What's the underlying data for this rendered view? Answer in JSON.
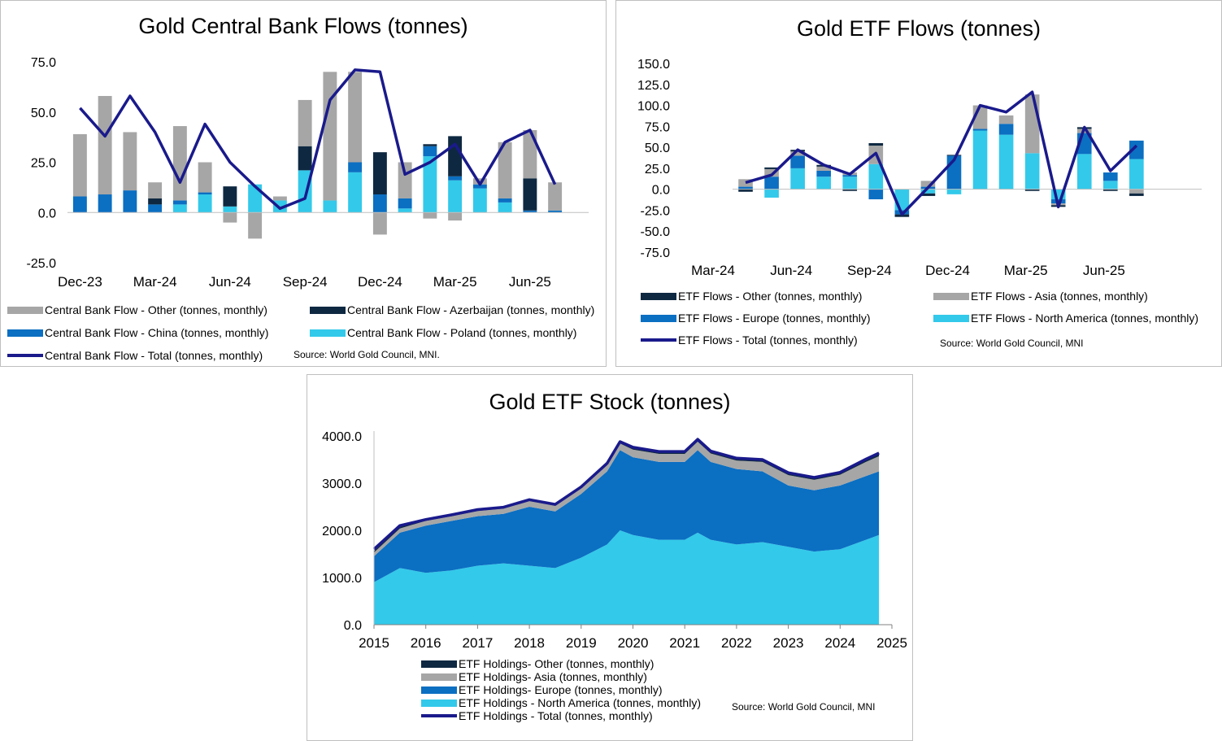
{
  "colors": {
    "other": "#a6a6a6",
    "azerbaijan": "#0e2841",
    "china": "#0b6fc2",
    "poland": "#33c9ea",
    "total": "#1a1a8c",
    "etf_other": "#0e2841",
    "etf_asia": "#a6a6a6",
    "etf_europe": "#0b6fc2",
    "etf_na": "#33c9ea"
  },
  "panel1": {
    "title": "Gold Central Bank Flows (tonnes)",
    "source": "Source: World Gold Council, MNI.",
    "legend": [
      {
        "label": "Central Bank Flow - Other (tonnes, monthly)",
        "kind": "bar",
        "color": "#a6a6a6"
      },
      {
        "label": "Central Bank Flow - Azerbaijan (tonnes, monthly)",
        "kind": "bar",
        "color": "#0e2841"
      },
      {
        "label": "Central Bank Flow - China (tonnes, monthly)",
        "kind": "bar",
        "color": "#0b6fc2"
      },
      {
        "label": "Central Bank Flow - Poland (tonnes, monthly)",
        "kind": "bar",
        "color": "#33c9ea"
      },
      {
        "label": "Central Bank Flow - Total (tonnes, monthly)",
        "kind": "line",
        "color": "#1a1a8c"
      }
    ]
  },
  "panel2": {
    "title": "Gold ETF Flows (tonnes)",
    "source": "Source: World Gold Council, MNI",
    "legend": [
      {
        "label": "ETF Flows - Other (tonnes, monthly)",
        "kind": "bar",
        "color": "#0e2841"
      },
      {
        "label": "ETF Flows - Asia (tonnes, monthly)",
        "kind": "bar",
        "color": "#a6a6a6"
      },
      {
        "label": "ETF Flows - Europe (tonnes, monthly)",
        "kind": "bar",
        "color": "#0b6fc2"
      },
      {
        "label": "ETF Flows - North America (tonnes, monthly)",
        "kind": "bar",
        "color": "#33c9ea"
      },
      {
        "label": "ETF Flows - Total (tonnes, monthly)",
        "kind": "line",
        "color": "#1a1a8c"
      }
    ]
  },
  "panel3": {
    "title": "Gold ETF Stock (tonnes)",
    "source": "Source: World Gold Council, MNI",
    "legend": [
      {
        "label": "ETF Holdings- Other (tonnes, monthly)",
        "kind": "bar",
        "color": "#0e2841"
      },
      {
        "label": "ETF Holdings- Asia (tonnes, monthly)",
        "kind": "bar",
        "color": "#a6a6a6"
      },
      {
        "label": "ETF Holdings- Europe (tonnes, monthly)",
        "kind": "bar",
        "color": "#0b6fc2"
      },
      {
        "label": "ETF Holdings - North America (tonnes, monthly)",
        "kind": "bar",
        "color": "#33c9ea"
      },
      {
        "label": "ETF Holdings - Total (tonnes, monthly)",
        "kind": "line",
        "color": "#1a1a8c"
      }
    ]
  },
  "chart_data": [
    {
      "type": "bar",
      "stacked": true,
      "title": "Gold Central Bank Flows (tonnes)",
      "ylim": [
        -25,
        75
      ],
      "yticks": [
        "75.0",
        "50.0",
        "25.0",
        "0.0",
        "-25.0"
      ],
      "ytick_values": [
        75,
        50,
        25,
        0,
        -25
      ],
      "categories": [
        "Dec-23",
        "Jan-24",
        "Feb-24",
        "Mar-24",
        "Apr-24",
        "May-24",
        "Jun-24",
        "Jul-24",
        "Aug-24",
        "Sep-24",
        "Oct-24",
        "Nov-24",
        "Dec-24",
        "Jan-25",
        "Feb-25",
        "Mar-25",
        "Apr-25",
        "May-25",
        "Jun-25",
        "Jul-25"
      ],
      "xtick_labels": [
        "Dec-23",
        "Mar-24",
        "Jun-24",
        "Sep-24",
        "Dec-24",
        "Mar-25",
        "Jun-25"
      ],
      "xtick_index": [
        0,
        3,
        6,
        9,
        12,
        15,
        18
      ],
      "series": [
        {
          "name": "Central Bank Flow - Poland (tonnes, monthly)",
          "key": "poland",
          "values": [
            0,
            0,
            0,
            0,
            4,
            9,
            3,
            14,
            6,
            21,
            6,
            20,
            0,
            2,
            28,
            16,
            12,
            5,
            0,
            0
          ]
        },
        {
          "name": "Central Bank Flow - China (tonnes, monthly)",
          "key": "china",
          "values": [
            8,
            9,
            11,
            4,
            2,
            1,
            0,
            0,
            0,
            0,
            0,
            5,
            9,
            5,
            5,
            2,
            2,
            2,
            1,
            1
          ]
        },
        {
          "name": "Central Bank Flow - Azerbaijan (tonnes, monthly)",
          "key": "azerbaijan",
          "values": [
            0,
            0,
            0,
            3,
            0,
            0,
            10,
            0,
            0,
            12,
            0,
            0,
            21,
            0,
            1,
            20,
            0,
            0,
            16,
            0
          ]
        },
        {
          "name": "Central Bank Flow - Other (tonnes, monthly)",
          "key": "other",
          "values": [
            31,
            49,
            29,
            8,
            37,
            15,
            -5,
            -13,
            2,
            23,
            64,
            45,
            -11,
            18,
            -3,
            -4,
            3,
            28,
            24,
            14
          ]
        }
      ],
      "total": {
        "name": "Central Bank Flow - Total (tonnes, monthly)",
        "values": [
          52,
          38,
          58,
          40,
          15,
          44,
          25,
          13,
          2,
          7,
          56,
          71,
          70,
          19,
          25,
          34,
          14,
          35,
          41,
          14
        ]
      }
    },
    {
      "type": "bar",
      "stacked": true,
      "title": "Gold ETF Flows (tonnes)",
      "ylim": [
        -75,
        150
      ],
      "yticks": [
        "150.0",
        "125.0",
        "100.0",
        "75.0",
        "50.0",
        "25.0",
        "0.0",
        "-25.0",
        "-50.0",
        "-75.0"
      ],
      "ytick_values": [
        150,
        125,
        100,
        75,
        50,
        25,
        0,
        -25,
        -50,
        -75
      ],
      "categories": [
        "Mar-24",
        "Apr-24",
        "May-24",
        "Jun-24",
        "Jul-24",
        "Aug-24",
        "Sep-24",
        "Oct-24",
        "Nov-24",
        "Dec-24",
        "Jan-25",
        "Feb-25",
        "Mar-25",
        "Apr-25",
        "May-25",
        "Jun-25",
        "Jul-25",
        "Aug-25"
      ],
      "xtick_labels": [
        "Mar-24",
        "Jun-24",
        "Sep-24",
        "Dec-24",
        "Mar-25",
        "Jun-25"
      ],
      "xtick_index": [
        0,
        3,
        6,
        9,
        12,
        15
      ],
      "series": [
        {
          "name": "ETF Flows - North America (tonnes, monthly)",
          "key": "etf_na",
          "values": [
            0,
            -10,
            25,
            15,
            15,
            30,
            -25,
            -5,
            -6,
            70,
            65,
            43,
            -12,
            42,
            10,
            36,
            0,
            0
          ]
        },
        {
          "name": "ETF Flows - Europe (tonnes, monthly)",
          "key": "etf_europe",
          "values": [
            3,
            15,
            15,
            7,
            2,
            -12,
            -5,
            3,
            40,
            2,
            13,
            0,
            -5,
            25,
            10,
            22,
            0,
            0
          ]
        },
        {
          "name": "ETF Flows - Asia (tonnes, monthly)",
          "key": "etf_asia",
          "values": [
            9,
            9,
            5,
            5,
            3,
            22,
            0,
            7,
            0,
            28,
            10,
            70,
            -2,
            5,
            0,
            -5,
            0,
            0
          ]
        },
        {
          "name": "ETF Flows - Other (tonnes, monthly)",
          "key": "etf_other",
          "values": [
            -3,
            2,
            2,
            2,
            -2,
            3,
            -3,
            -3,
            1,
            0,
            0,
            -2,
            -2,
            2,
            -2,
            -3,
            0,
            0
          ]
        }
      ],
      "total": {
        "name": "ETF Flows - Total (tonnes, monthly)",
        "values": [
          8,
          17,
          47,
          29,
          18,
          43,
          -30,
          2,
          35,
          100,
          92,
          116,
          -21,
          74,
          22,
          52,
          null,
          null
        ]
      }
    },
    {
      "type": "area",
      "stacked": true,
      "title": "Gold ETF Stock (tonnes)",
      "ylim": [
        0,
        4000
      ],
      "yticks": [
        "4000.0",
        "3000.0",
        "2000.0",
        "1000.0",
        "0.0"
      ],
      "ytick_values": [
        4000,
        3000,
        2000,
        1000,
        0
      ],
      "xlim": [
        2015,
        2025
      ],
      "xticks": [
        "2015",
        "2016",
        "2017",
        "2018",
        "2019",
        "2020",
        "2021",
        "2022",
        "2023",
        "2024",
        "2025"
      ],
      "xtick_values": [
        2015,
        2016,
        2017,
        2018,
        2019,
        2020,
        2021,
        2022,
        2023,
        2024,
        2025
      ],
      "x": [
        2015.0,
        2015.5,
        2016.0,
        2016.5,
        2017.0,
        2017.5,
        2018.0,
        2018.5,
        2019.0,
        2019.5,
        2019.75,
        2020.0,
        2020.5,
        2021.0,
        2021.25,
        2021.5,
        2022.0,
        2022.5,
        2023.0,
        2023.5,
        2024.0,
        2024.5,
        2024.75
      ],
      "series": [
        {
          "name": "ETF Holdings - North America (tonnes, monthly)",
          "key": "etf_na",
          "values": [
            900,
            1200,
            1100,
            1150,
            1250,
            1300,
            1250,
            1200,
            1420,
            1700,
            2000,
            1900,
            1800,
            1800,
            1950,
            1800,
            1700,
            1750,
            1650,
            1550,
            1600,
            1800,
            1900
          ]
        },
        {
          "name": "ETF Holdings- Europe (tonnes, monthly)",
          "key": "etf_europe",
          "values": [
            550,
            750,
            1000,
            1050,
            1050,
            1050,
            1250,
            1200,
            1350,
            1550,
            1700,
            1650,
            1650,
            1650,
            1750,
            1650,
            1600,
            1500,
            1300,
            1300,
            1350,
            1350,
            1350
          ]
        },
        {
          "name": "ETF Holdings- Asia (tonnes, monthly)",
          "key": "etf_asia",
          "values": [
            80,
            90,
            100,
            100,
            110,
            110,
            120,
            120,
            120,
            130,
            140,
            160,
            170,
            170,
            180,
            180,
            180,
            200,
            220,
            220,
            230,
            300,
            320
          ]
        },
        {
          "name": "ETF Holdings- Other (tonnes, monthly)",
          "key": "etf_other",
          "values": [
            30,
            30,
            30,
            30,
            30,
            30,
            30,
            30,
            30,
            30,
            40,
            50,
            50,
            50,
            50,
            50,
            50,
            50,
            50,
            50,
            50,
            60,
            70
          ]
        }
      ],
      "total": {
        "name": "ETF Holdings - Total (tonnes, monthly)",
        "values": [
          1600,
          2100,
          2230,
          2330,
          2440,
          2490,
          2650,
          2550,
          2920,
          3420,
          3880,
          3760,
          3670,
          3670,
          3930,
          3680,
          3530,
          3500,
          3220,
          3120,
          3230,
          3510,
          3640
        ]
      }
    }
  ]
}
